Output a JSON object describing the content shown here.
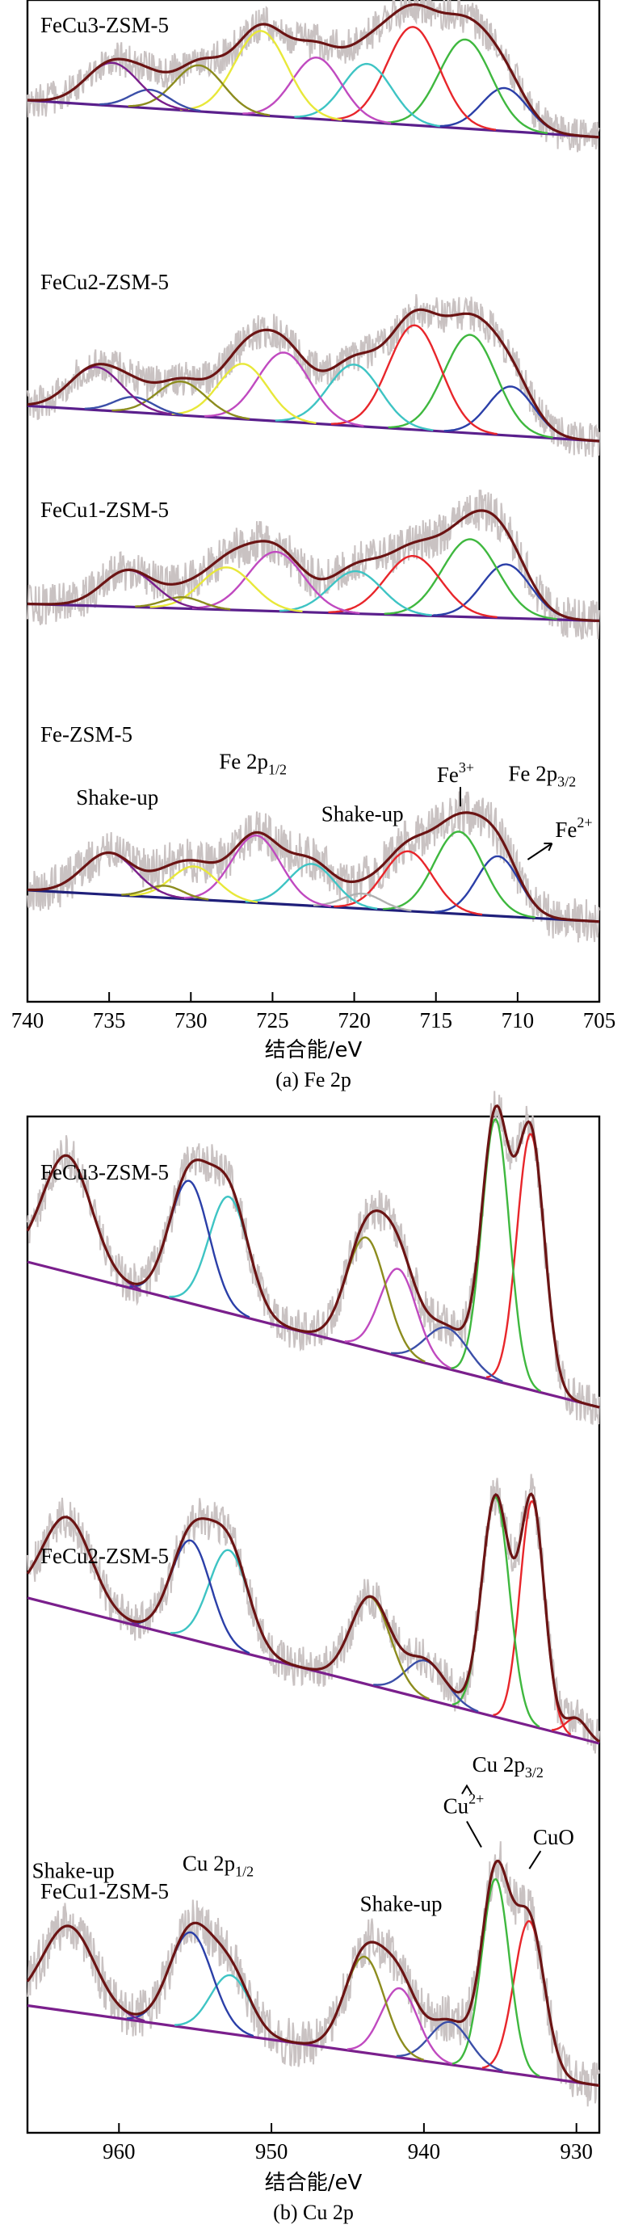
{
  "colors": {
    "fit": "#6b1414",
    "raw": "#c9c2c2",
    "baseline_fe": "#5a1f8c",
    "baseline_fe_last": "#1f1f7a",
    "baseline_cu": "#7a1f8c",
    "axis": "#000000"
  },
  "chart_data": [
    {
      "type": "line",
      "caption": "(a) Fe 2p",
      "xlabel": "结合能/eV",
      "ylabel": "",
      "xlim": [
        740,
        705
      ],
      "x_reversed": true,
      "xticks": [
        {
          "value": 740,
          "label": "740"
        },
        {
          "value": 735,
          "label": "735"
        },
        {
          "value": 730,
          "label": "730"
        },
        {
          "value": 725,
          "label": "725"
        },
        {
          "value": 720,
          "label": "720"
        },
        {
          "value": 715,
          "label": "715"
        },
        {
          "value": 710,
          "label": "710"
        },
        {
          "value": 705,
          "label": "705"
        }
      ],
      "grid": false,
      "panels": [
        {
          "label": "FeCu3-ZSM-5",
          "baseline": [
            0.08,
            0.32
          ],
          "peaks": [
            {
              "center": 710.8,
              "height": 0.28,
              "width": 1.4,
              "color": "#2b3fa8"
            },
            {
              "center": 713.2,
              "height": 0.58,
              "width": 1.6,
              "color": "#3fb83f"
            },
            {
              "center": 716.4,
              "height": 0.64,
              "width": 1.6,
              "color": "#e8262b"
            },
            {
              "center": 719.2,
              "height": 0.38,
              "width": 1.5,
              "color": "#3ec4c4"
            },
            {
              "center": 722.3,
              "height": 0.4,
              "width": 1.5,
              "color": "#c04ac0"
            },
            {
              "center": 725.7,
              "height": 0.55,
              "width": 1.6,
              "color": "#e8e83a"
            },
            {
              "center": 729.5,
              "height": 0.3,
              "width": 1.5,
              "color": "#8c8c1e"
            },
            {
              "center": 732.5,
              "height": 0.12,
              "width": 1.2,
              "color": "#3b4fa8"
            },
            {
              "center": 734.8,
              "height": 0.28,
              "width": 1.6,
              "color": "#7a1f8c"
            }
          ]
        },
        {
          "label": "FeCu2-ZSM-5",
          "baseline": [
            0.1,
            0.33
          ],
          "peaks": [
            {
              "center": 710.4,
              "height": 0.32,
              "width": 1.4,
              "color": "#2b3fa8"
            },
            {
              "center": 712.9,
              "height": 0.64,
              "width": 1.6,
              "color": "#3fb83f"
            },
            {
              "center": 716.3,
              "height": 0.68,
              "width": 1.6,
              "color": "#e8262b"
            },
            {
              "center": 720.0,
              "height": 0.4,
              "width": 1.6,
              "color": "#3ec4c4"
            },
            {
              "center": 724.3,
              "height": 0.45,
              "width": 1.6,
              "color": "#c04ac0"
            },
            {
              "center": 726.8,
              "height": 0.36,
              "width": 1.5,
              "color": "#e8e83a"
            },
            {
              "center": 730.6,
              "height": 0.22,
              "width": 1.5,
              "color": "#8c8c1e"
            },
            {
              "center": 733.5,
              "height": 0.1,
              "width": 1.2,
              "color": "#3b4fa8"
            },
            {
              "center": 735.8,
              "height": 0.28,
              "width": 1.6,
              "color": "#7a1f8c"
            }
          ]
        },
        {
          "label": "FeCu1-ZSM-5",
          "baseline": [
            0.18,
            0.3
          ],
          "peaks": [
            {
              "center": 710.7,
              "height": 0.38,
              "width": 1.5,
              "color": "#2b3fa8"
            },
            {
              "center": 712.9,
              "height": 0.55,
              "width": 1.7,
              "color": "#3fb83f"
            },
            {
              "center": 716.4,
              "height": 0.42,
              "width": 1.7,
              "color": "#e8262b"
            },
            {
              "center": 719.9,
              "height": 0.3,
              "width": 1.6,
              "color": "#3ec4c4"
            },
            {
              "center": 724.8,
              "height": 0.42,
              "width": 1.7,
              "color": "#c04ac0"
            },
            {
              "center": 727.8,
              "height": 0.3,
              "width": 1.6,
              "color": "#e8e83a"
            },
            {
              "center": 730.5,
              "height": 0.08,
              "width": 1.2,
              "color": "#8c8c1e"
            },
            {
              "center": 733.8,
              "height": 0.26,
              "width": 1.6,
              "color": "#7a1f8c"
            }
          ]
        },
        {
          "label": "Fe-ZSM-5",
          "baseline": [
            0.05,
            0.26
          ],
          "peaks": [
            {
              "center": 711.2,
              "height": 0.4,
              "width": 1.3,
              "color": "#2b3fa8"
            },
            {
              "center": 713.6,
              "height": 0.55,
              "width": 1.5,
              "color": "#3fb83f"
            },
            {
              "center": 716.7,
              "height": 0.4,
              "width": 1.5,
              "color": "#e8262b"
            },
            {
              "center": 719.5,
              "height": 0.1,
              "width": 1.2,
              "color": "#b0b0b0"
            },
            {
              "center": 722.6,
              "height": 0.28,
              "width": 1.4,
              "color": "#3ec4c4"
            },
            {
              "center": 726.0,
              "height": 0.45,
              "width": 1.5,
              "color": "#c04ac0"
            },
            {
              "center": 729.8,
              "height": 0.22,
              "width": 1.4,
              "color": "#e8e83a"
            },
            {
              "center": 731.6,
              "height": 0.08,
              "width": 1.1,
              "color": "#8c8c1e"
            },
            {
              "center": 735.0,
              "height": 0.28,
              "width": 1.6,
              "color": "#7a1f8c"
            }
          ],
          "annotations": [
            {
              "id": "shakeup-1",
              "text": "Shake-up",
              "x": 734.5
            },
            {
              "id": "fe2p12",
              "text": "Fe 2p",
              "sub": "1/2",
              "x": 726.2
            },
            {
              "id": "shakeup-2",
              "text": "Shake-up",
              "x": 719.5
            },
            {
              "id": "fe3",
              "text": "Fe",
              "sup": "3+",
              "x": 713.8
            },
            {
              "id": "fe2p32",
              "text": "Fe 2p",
              "sub": "3/2",
              "x": 708.5
            },
            {
              "id": "fe2",
              "text": "Fe",
              "sup": "2+",
              "x": 707.7
            }
          ]
        }
      ]
    },
    {
      "type": "line",
      "caption": "(b) Cu 2p",
      "xlabel": "结合能/eV",
      "ylabel": "",
      "xlim": [
        966,
        928.5
      ],
      "x_reversed": true,
      "xticks": [
        {
          "value": 960,
          "label": "960"
        },
        {
          "value": 950,
          "label": "950"
        },
        {
          "value": 940,
          "label": "940"
        },
        {
          "value": 930,
          "label": "930"
        }
      ],
      "grid": false,
      "panels": [
        {
          "label": "FeCu3-ZSM-5",
          "baseline": [
            0.05,
            0.55
          ],
          "peaks": [
            {
              "center": 933.0,
              "height": 0.88,
              "width": 0.9,
              "color": "#e8262b"
            },
            {
              "center": 935.3,
              "height": 0.9,
              "width": 0.9,
              "color": "#3fb83f"
            },
            {
              "center": 938.5,
              "height": 0.14,
              "width": 1.4,
              "color": "#3b4fa8"
            },
            {
              "center": 941.7,
              "height": 0.3,
              "width": 1.2,
              "color": "#c04ac0"
            },
            {
              "center": 943.8,
              "height": 0.38,
              "width": 1.3,
              "color": "#8c8c1e"
            },
            {
              "center": 952.8,
              "height": 0.4,
              "width": 1.3,
              "color": "#3ec4c4"
            },
            {
              "center": 955.4,
              "height": 0.42,
              "width": 1.3,
              "color": "#2b3fa8"
            },
            {
              "center": 963.4,
              "height": 0.4,
              "width": 1.6,
              "color": "#7a1f8c"
            }
          ]
        },
        {
          "label": "FeCu2-ZSM-5",
          "baseline": [
            0.05,
            0.58
          ],
          "peaks": [
            {
              "center": 930.0,
              "height": 0.07,
              "width": 0.7,
              "color": "#e8262b"
            },
            {
              "center": 932.9,
              "height": 0.82,
              "width": 0.8,
              "color": "#e8262b"
            },
            {
              "center": 935.3,
              "height": 0.8,
              "width": 0.9,
              "color": "#3fb83f"
            },
            {
              "center": 939.9,
              "height": 0.14,
              "width": 1.3,
              "color": "#3b4fa8"
            },
            {
              "center": 943.5,
              "height": 0.32,
              "width": 1.3,
              "color": "#8c8c1e"
            },
            {
              "center": 952.8,
              "height": 0.36,
              "width": 1.3,
              "color": "#3ec4c4"
            },
            {
              "center": 955.3,
              "height": 0.36,
              "width": 1.3,
              "color": "#2b3fa8"
            },
            {
              "center": 963.4,
              "height": 0.33,
              "width": 1.6,
              "color": "#7a1f8c"
            }
          ]
        },
        {
          "label": "FeCu1-ZSM-5",
          "baseline": [
            0.05,
            0.35
          ],
          "peaks": [
            {
              "center": 933.1,
              "height": 0.58,
              "width": 1.0,
              "color": "#e8262b"
            },
            {
              "center": 935.3,
              "height": 0.72,
              "width": 0.9,
              "color": "#3fb83f"
            },
            {
              "center": 938.3,
              "height": 0.16,
              "width": 1.3,
              "color": "#3b4fa8"
            },
            {
              "center": 941.6,
              "height": 0.26,
              "width": 1.2,
              "color": "#c04ac0"
            },
            {
              "center": 943.9,
              "height": 0.36,
              "width": 1.3,
              "color": "#8c8c1e"
            },
            {
              "center": 952.7,
              "height": 0.22,
              "width": 1.3,
              "color": "#3ec4c4"
            },
            {
              "center": 955.3,
              "height": 0.36,
              "width": 1.4,
              "color": "#2b3fa8"
            },
            {
              "center": 963.3,
              "height": 0.32,
              "width": 1.7,
              "color": "#7a1f8c"
            }
          ],
          "annotations": [
            {
              "id": "shakeup-a",
              "text": "Shake-up",
              "x": 963.0
            },
            {
              "id": "cu2p12",
              "text": "Cu 2p",
              "sub": "1/2",
              "x": 953.5
            },
            {
              "id": "shakeup-b",
              "text": "Shake-up",
              "x": 941.5
            },
            {
              "id": "cu2p32",
              "text": "Cu 2p",
              "sub": "3/2",
              "x": 934.5
            },
            {
              "id": "cu2",
              "text": "Cu",
              "sup": "2+",
              "x": 937.4
            },
            {
              "id": "cuo",
              "text": "CuO",
              "x": 931.5
            }
          ]
        }
      ]
    }
  ]
}
